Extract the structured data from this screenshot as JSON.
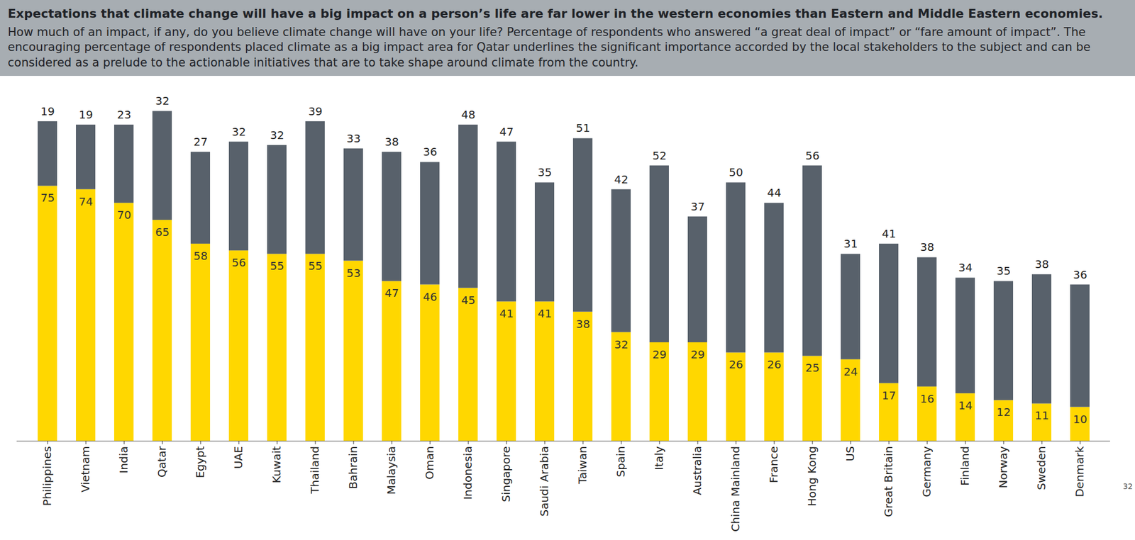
{
  "chart_data": {
    "type": "bar",
    "title": "Expectations that climate change will have a big impact on a person’s life are far lower in the western economies than Eastern and Middle Eastern economies.",
    "subtitle": "How much of an impact, if any, do you believe climate change will have on your life? Percentage of respondents who answered “a great deal of impact” or “fare amount of impact”. The encouraging percentage of respondents placed climate as a big impact area for Qatar underlines the significant importance accorded by the local stakeholders to the subject and can be considered as a prelude to the actionable initiatives that are to take shape around climate from the country.",
    "page_number": "32",
    "categories": [
      "Philippines",
      "Vietnam",
      "India",
      "Qatar",
      "Egypt",
      "UAE",
      "Kuwait",
      "Thailand",
      "Bahrain",
      "Malaysia",
      "Oman",
      "Indonesia",
      "Singapore",
      "Saudi Arabia",
      "Taiwan",
      "Spain",
      "Italy",
      "Australia",
      "China Mainland",
      "France",
      "Hong Kong",
      "US",
      "Great Britain",
      "Germany",
      "Finland",
      "Norway",
      "Sweden",
      "Denmark"
    ],
    "series": [
      {
        "color": "#ffd700",
        "values": [
          75,
          74,
          70,
          65,
          58,
          56,
          55,
          55,
          53,
          47,
          46,
          45,
          41,
          41,
          38,
          32,
          29,
          29,
          26,
          26,
          25,
          24,
          17,
          16,
          14,
          12,
          11,
          10
        ]
      },
      {
        "color": "#58616b",
        "values": [
          19,
          19,
          23,
          32,
          27,
          32,
          32,
          39,
          33,
          38,
          36,
          48,
          47,
          35,
          51,
          42,
          52,
          37,
          50,
          44,
          56,
          31,
          41,
          38,
          34,
          35,
          38,
          36
        ]
      }
    ],
    "stacked": true,
    "data_labels": true,
    "ylim": [
      0,
      100
    ],
    "tick_labels": "x",
    "grid": false
  }
}
